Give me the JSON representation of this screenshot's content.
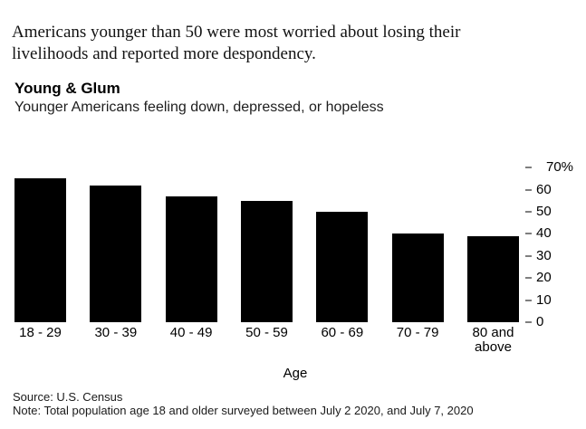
{
  "intro_text": "Americans younger than 50 were most worried about losing their livelihoods and reported more despondency.",
  "chart_data": {
    "type": "bar",
    "title": "Young & Glum",
    "subtitle": "Younger Americans feeling down, depressed, or hopeless",
    "categories": [
      "18 - 29",
      "30 - 39",
      "40 - 49",
      "50 - 59",
      "60 - 69",
      "70 - 79",
      "80 and above"
    ],
    "values": [
      65,
      62,
      57,
      55,
      50,
      40,
      39
    ],
    "xlabel": "Age",
    "ylabel": "",
    "unit": "%",
    "ylim": [
      0,
      70
    ],
    "yticks": [
      0,
      10,
      20,
      30,
      40,
      50,
      60,
      70
    ],
    "ytick_labels": [
      "0",
      "10",
      "20",
      "30",
      "40",
      "50",
      "60",
      "70%"
    ],
    "y_axis_side": "right",
    "grid": false,
    "legend": "none",
    "bar_color": "#000000",
    "tick_mark_color": "#7f7f7f"
  },
  "footer": {
    "source": "Source: U.S. Census",
    "note": "Note: Total population age 18 and older surveyed between July 2 2020, and July 7, 2020"
  }
}
